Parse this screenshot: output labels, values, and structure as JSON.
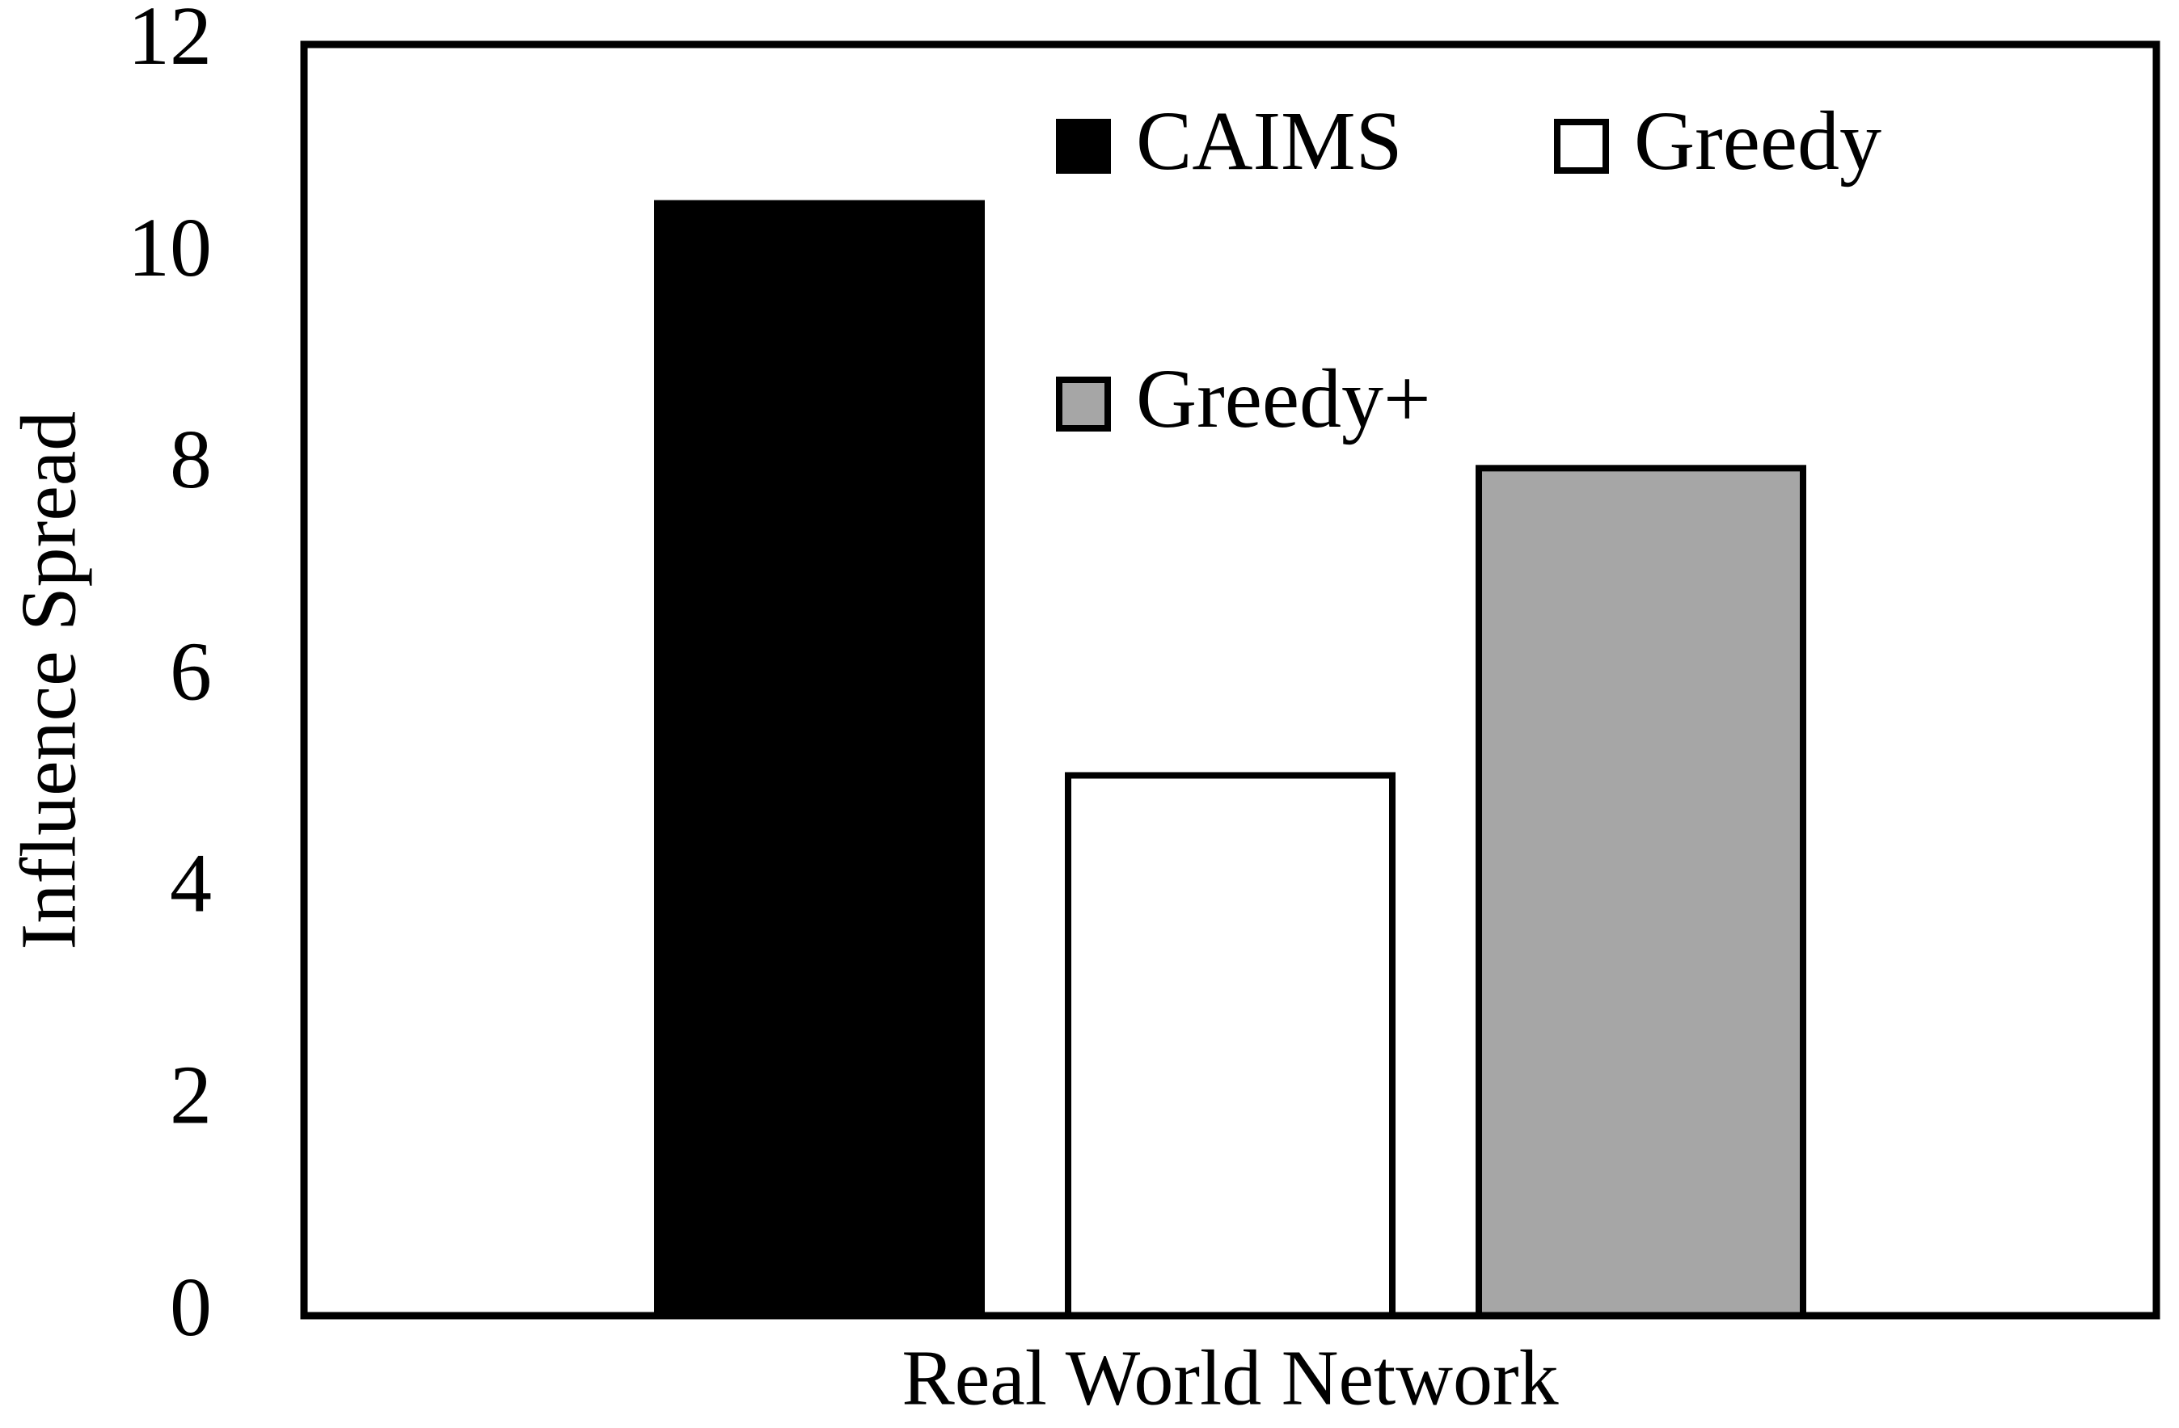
{
  "chart_data": {
    "type": "bar",
    "y_label": "Influence Spread",
    "categories": [
      "Real World Network"
    ],
    "series": [
      {
        "name": "CAIMS",
        "color": "#000000",
        "values": [
          10.5
        ]
      },
      {
        "name": "Greedy",
        "color": "#ffffff",
        "values": [
          5.1
        ]
      },
      {
        "name": "Greedy+",
        "color": "#a6a6a6",
        "values": [
          8.0
        ]
      }
    ],
    "ylim": [
      0,
      12
    ],
    "yticks": [
      0,
      2,
      4,
      6,
      8,
      10,
      12
    ],
    "grid": false
  }
}
